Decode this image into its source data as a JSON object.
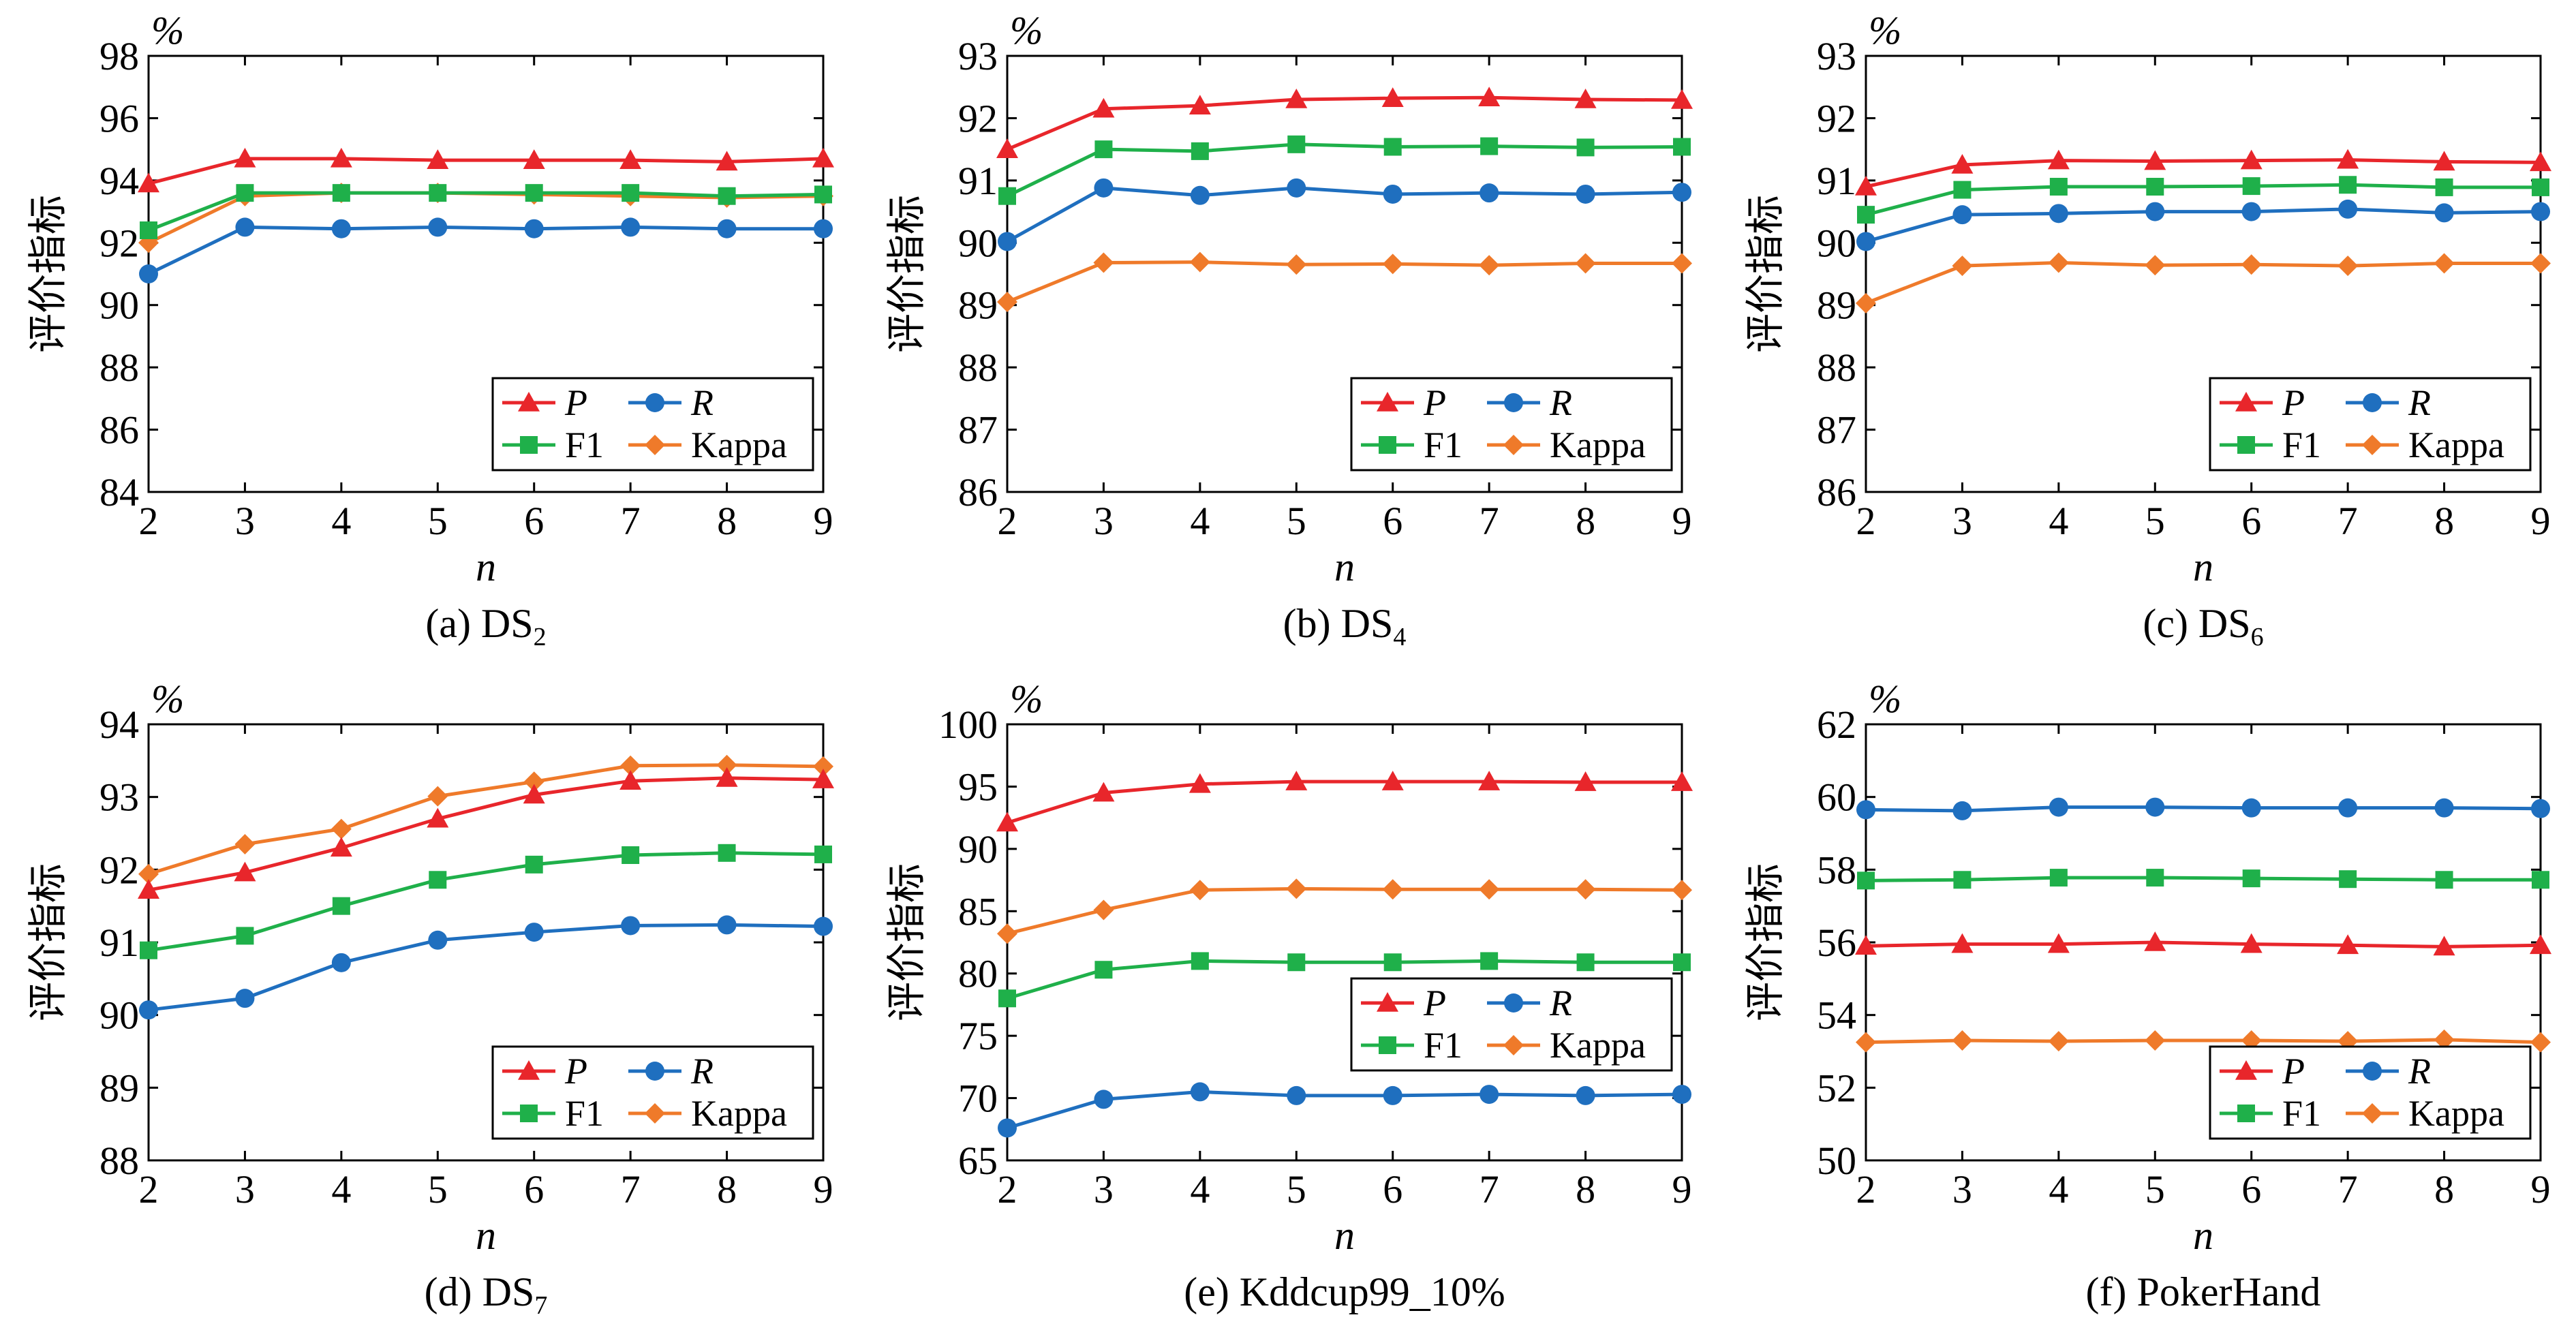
{
  "colors": {
    "P": "#e8262b",
    "R": "#1f6fbf",
    "F1": "#1fb04a",
    "Kappa": "#ef7a2a"
  },
  "legend_markers": {
    "P": "triangle",
    "R": "circle",
    "F1": "square",
    "Kappa": "diamond"
  },
  "chart_data": [
    {
      "type": "line",
      "caption": "(a) DS",
      "caption_sub": "2",
      "xlabel": "n",
      "ylabel": "评价指标",
      "unit": "%",
      "x": [
        2,
        3,
        4,
        5,
        6,
        7,
        8,
        9
      ],
      "ylim": [
        84,
        98
      ],
      "yticks": [
        84,
        86,
        88,
        90,
        92,
        94,
        96,
        98
      ],
      "legend_placement": "bottom-right",
      "series": [
        {
          "name": "P",
          "values": [
            93.9,
            94.7,
            94.7,
            94.65,
            94.65,
            94.65,
            94.6,
            94.7
          ]
        },
        {
          "name": "R",
          "values": [
            91.0,
            92.5,
            92.45,
            92.5,
            92.45,
            92.5,
            92.45,
            92.45
          ]
        },
        {
          "name": "F1",
          "values": [
            92.4,
            93.6,
            93.6,
            93.6,
            93.6,
            93.6,
            93.5,
            93.55
          ]
        },
        {
          "name": "Kappa",
          "values": [
            92.0,
            93.5,
            93.6,
            93.6,
            93.55,
            93.5,
            93.45,
            93.5
          ]
        }
      ]
    },
    {
      "type": "line",
      "caption": "(b) DS",
      "caption_sub": "4",
      "xlabel": "n",
      "ylabel": "评价指标",
      "unit": "%",
      "x": [
        2,
        3,
        4,
        5,
        6,
        7,
        8,
        9
      ],
      "ylim": [
        86,
        93
      ],
      "yticks": [
        86,
        87,
        88,
        89,
        90,
        91,
        92,
        93
      ],
      "legend_placement": "bottom-right",
      "series": [
        {
          "name": "P",
          "values": [
            91.5,
            92.15,
            92.2,
            92.3,
            92.32,
            92.33,
            92.3,
            92.29
          ]
        },
        {
          "name": "R",
          "values": [
            90.02,
            90.88,
            90.76,
            90.88,
            90.78,
            90.8,
            90.78,
            90.81
          ]
        },
        {
          "name": "F1",
          "values": [
            90.75,
            91.5,
            91.47,
            91.58,
            91.54,
            91.55,
            91.53,
            91.54
          ]
        },
        {
          "name": "Kappa",
          "values": [
            89.05,
            89.68,
            89.69,
            89.65,
            89.66,
            89.64,
            89.67,
            89.67
          ]
        }
      ]
    },
    {
      "type": "line",
      "caption": "(c) DS",
      "caption_sub": "6",
      "xlabel": "n",
      "ylabel": "评价指标",
      "unit": "%",
      "x": [
        2,
        3,
        4,
        5,
        6,
        7,
        8,
        9
      ],
      "ylim": [
        86,
        93
      ],
      "yticks": [
        86,
        87,
        88,
        89,
        90,
        91,
        92,
        93
      ],
      "legend_placement": "bottom-right",
      "series": [
        {
          "name": "P",
          "values": [
            90.9,
            91.25,
            91.32,
            91.31,
            91.32,
            91.33,
            91.3,
            91.29
          ]
        },
        {
          "name": "R",
          "values": [
            90.02,
            90.45,
            90.47,
            90.5,
            90.5,
            90.54,
            90.48,
            90.5
          ]
        },
        {
          "name": "F1",
          "values": [
            90.45,
            90.85,
            90.9,
            90.9,
            90.91,
            90.93,
            90.89,
            90.89
          ]
        },
        {
          "name": "Kappa",
          "values": [
            89.03,
            89.63,
            89.68,
            89.64,
            89.65,
            89.63,
            89.67,
            89.67
          ]
        }
      ]
    },
    {
      "type": "line",
      "caption": "(d) DS",
      "caption_sub": "7",
      "xlabel": "n",
      "ylabel": "评价指标",
      "unit": "%",
      "x": [
        2,
        3,
        4,
        5,
        6,
        7,
        8,
        9
      ],
      "ylim": [
        88,
        94
      ],
      "yticks": [
        88,
        89,
        90,
        91,
        92,
        93,
        94
      ],
      "legend_placement": "bottom-right",
      "series": [
        {
          "name": "P",
          "values": [
            91.72,
            91.96,
            92.3,
            92.7,
            93.03,
            93.22,
            93.26,
            93.24
          ]
        },
        {
          "name": "R",
          "values": [
            90.07,
            90.23,
            90.72,
            91.03,
            91.14,
            91.23,
            91.24,
            91.22
          ]
        },
        {
          "name": "F1",
          "values": [
            90.89,
            91.09,
            91.5,
            91.86,
            92.07,
            92.2,
            92.23,
            92.21
          ]
        },
        {
          "name": "Kappa",
          "values": [
            91.94,
            92.35,
            92.56,
            93.01,
            93.21,
            93.43,
            93.44,
            93.42
          ]
        }
      ]
    },
    {
      "type": "line",
      "caption": "(e) Kddcup99_10%",
      "caption_sub": "",
      "xlabel": "n",
      "ylabel": "评价指标",
      "unit": "%",
      "x": [
        2,
        3,
        4,
        5,
        6,
        7,
        8,
        9
      ],
      "ylim": [
        65,
        100
      ],
      "yticks": [
        65,
        70,
        75,
        80,
        85,
        90,
        95,
        100
      ],
      "legend_placement": "center-right",
      "series": [
        {
          "name": "P",
          "values": [
            92.1,
            94.5,
            95.2,
            95.4,
            95.4,
            95.4,
            95.35,
            95.35
          ]
        },
        {
          "name": "R",
          "values": [
            67.6,
            69.9,
            70.5,
            70.2,
            70.2,
            70.3,
            70.2,
            70.3
          ]
        },
        {
          "name": "F1",
          "values": [
            78.0,
            80.3,
            81.0,
            80.9,
            80.9,
            81.0,
            80.9,
            80.9
          ]
        },
        {
          "name": "Kappa",
          "values": [
            83.2,
            85.1,
            86.7,
            86.8,
            86.75,
            86.75,
            86.75,
            86.7
          ]
        }
      ]
    },
    {
      "type": "line",
      "caption": "(f) PokerHand",
      "caption_sub": "",
      "xlabel": "n",
      "ylabel": "评价指标",
      "unit": "%",
      "x": [
        2,
        3,
        4,
        5,
        6,
        7,
        8,
        9
      ],
      "ylim": [
        50,
        62
      ],
      "yticks": [
        50,
        52,
        54,
        56,
        58,
        60,
        62
      ],
      "legend_placement": "bottom-right",
      "series": [
        {
          "name": "P",
          "values": [
            55.9,
            55.95,
            55.95,
            56.0,
            55.95,
            55.92,
            55.88,
            55.92
          ]
        },
        {
          "name": "R",
          "values": [
            59.65,
            59.62,
            59.72,
            59.72,
            59.7,
            59.7,
            59.7,
            59.68
          ]
        },
        {
          "name": "F1",
          "values": [
            57.7,
            57.72,
            57.78,
            57.78,
            57.76,
            57.74,
            57.72,
            57.72
          ]
        },
        {
          "name": "Kappa",
          "values": [
            53.25,
            53.3,
            53.28,
            53.3,
            53.3,
            53.28,
            53.32,
            53.25
          ]
        }
      ]
    }
  ]
}
